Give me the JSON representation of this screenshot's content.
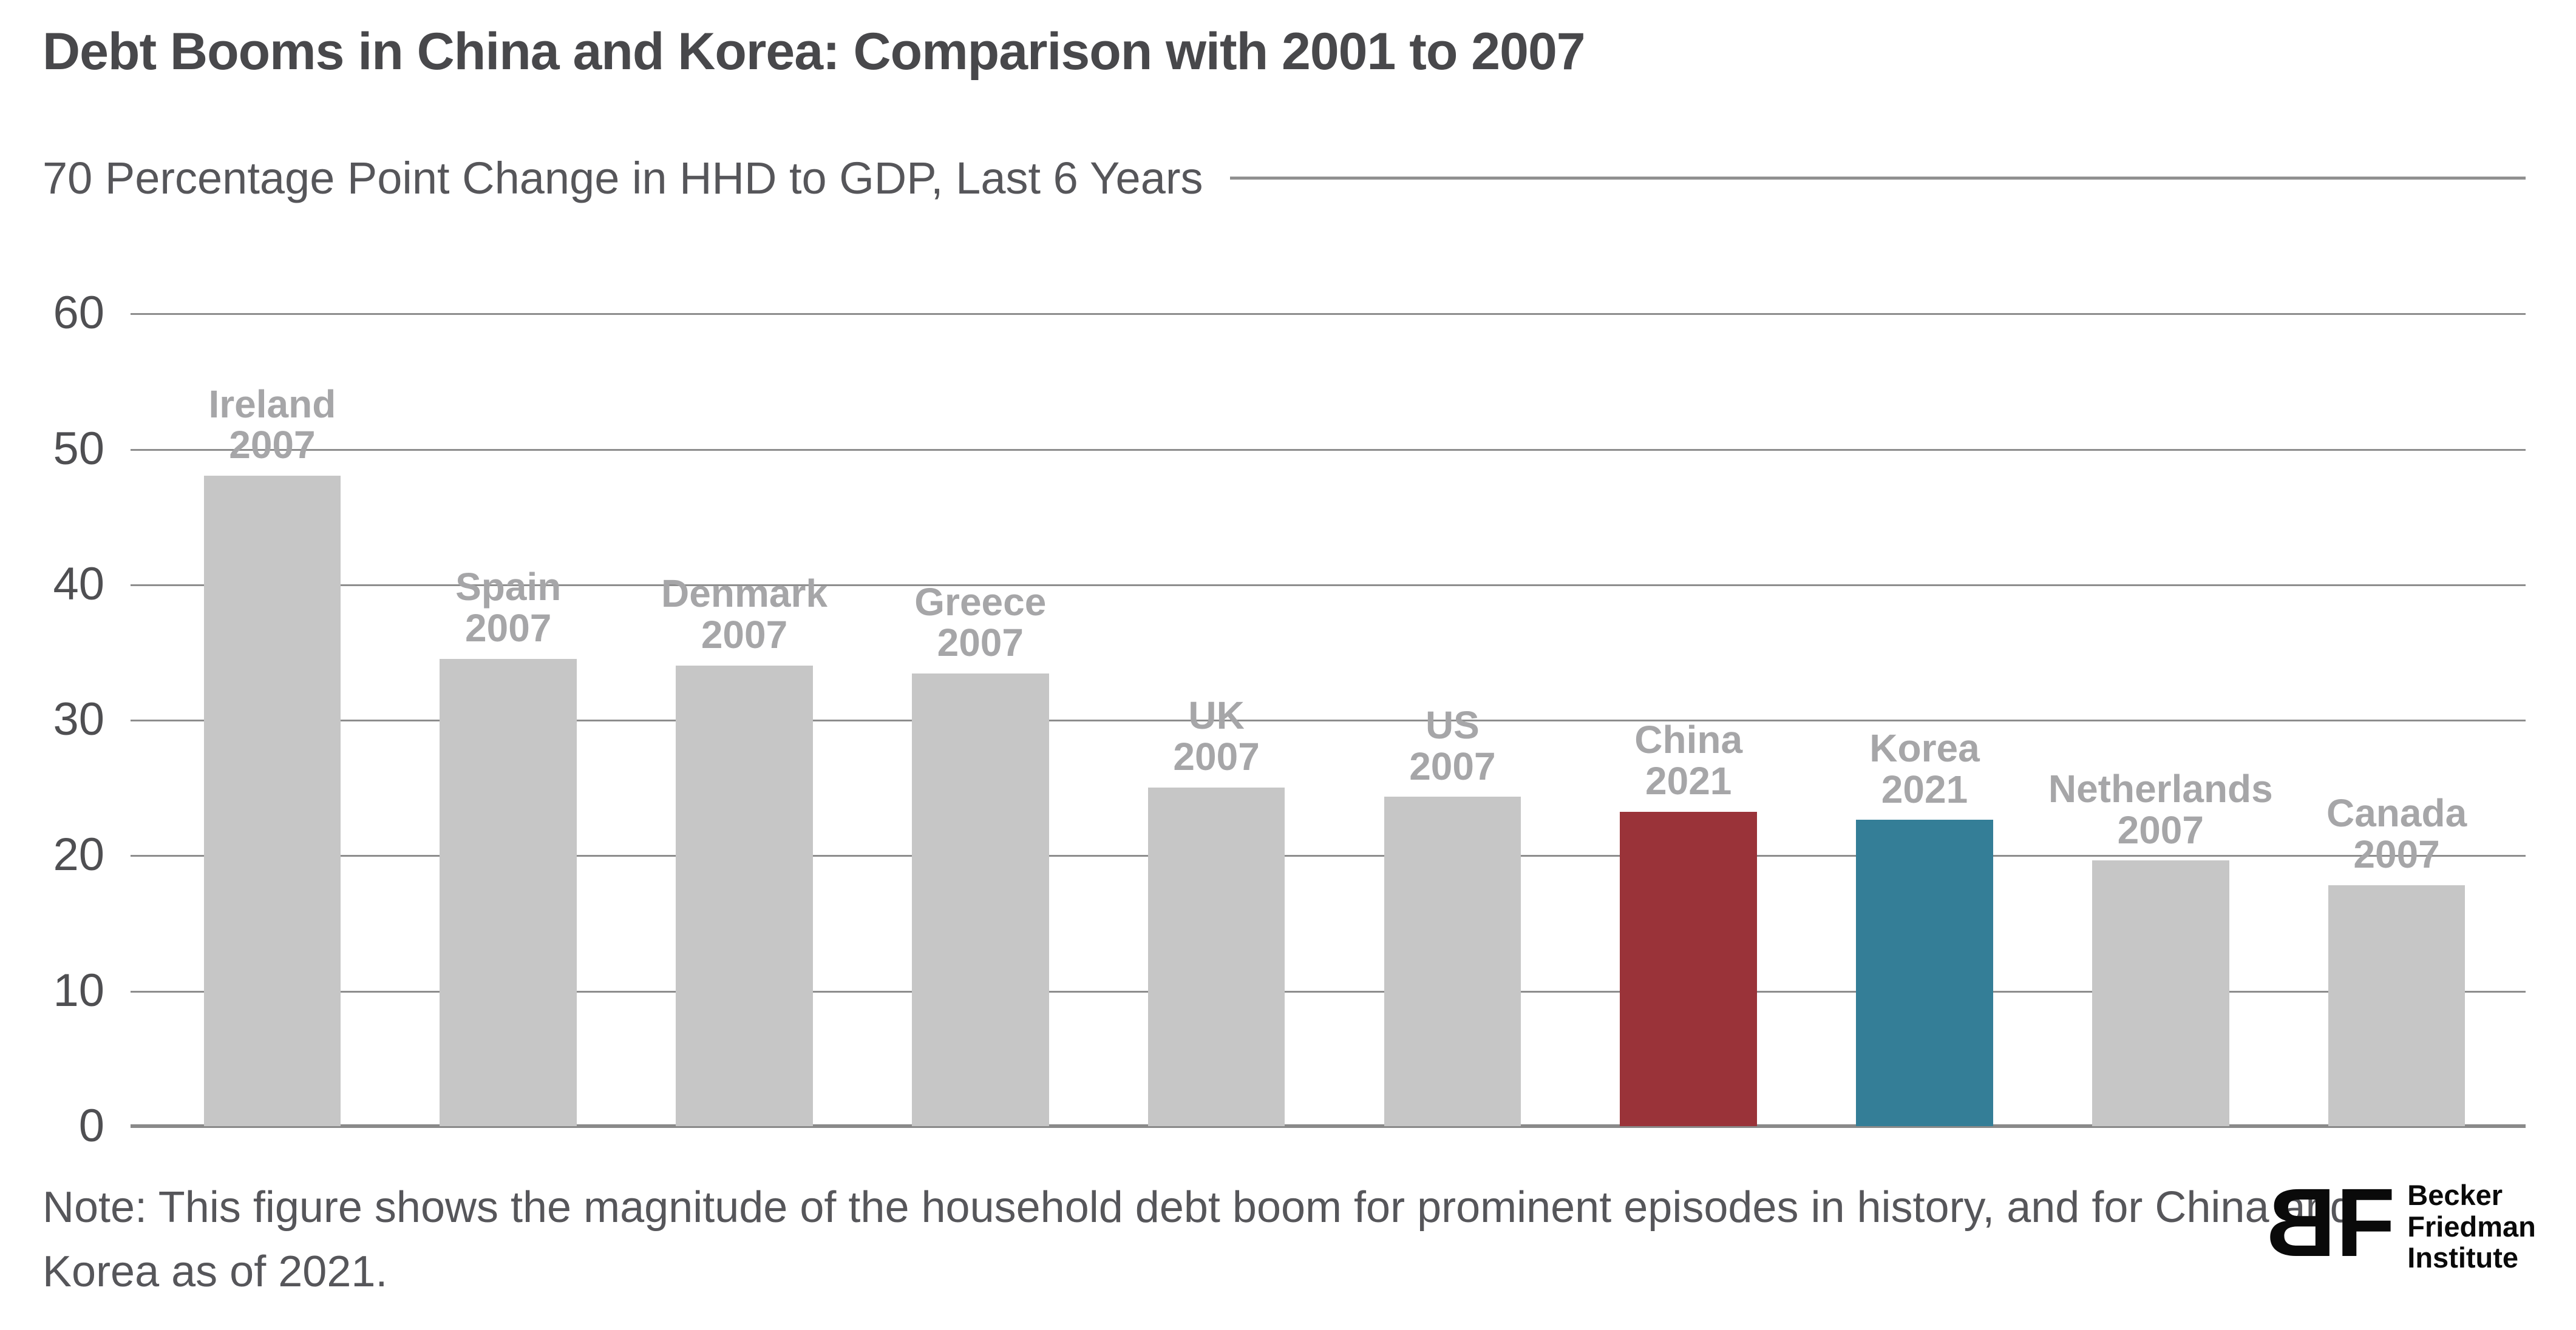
{
  "title": "Debt Booms in China and Korea: Comparison with 2001 to 2007",
  "axis": {
    "top_label_line": "70 Percentage Point Change in HHD to GDP, Last 6 Years",
    "ticks": [
      60,
      50,
      40,
      30,
      20,
      10,
      0
    ]
  },
  "chart_data": {
    "type": "bar",
    "title": "Debt Booms in China and Korea: Comparison with 2001 to 2007",
    "ylabel": "Percentage Point Change in HHD to GDP, Last 6 Years",
    "ylim": [
      0,
      70
    ],
    "yticks": [
      0,
      10,
      20,
      30,
      40,
      50,
      60,
      70
    ],
    "grid": true,
    "legend": false,
    "categories": [
      "Ireland",
      "Spain",
      "Denmark",
      "Greece",
      "UK",
      "US",
      "China",
      "Korea",
      "Netherlands",
      "Canada"
    ],
    "years": [
      "2007",
      "2007",
      "2007",
      "2007",
      "2007",
      "2007",
      "2021",
      "2021",
      "2007",
      "2007"
    ],
    "values": [
      48.0,
      34.5,
      34.0,
      33.4,
      25.0,
      24.3,
      23.2,
      22.6,
      19.6,
      17.8
    ],
    "bar_colors": [
      "#c6c6c6",
      "#c6c6c6",
      "#c6c6c6",
      "#c6c6c6",
      "#c6c6c6",
      "#c6c6c6",
      "#9a3339",
      "#347e97",
      "#c6c6c6",
      "#c6c6c6"
    ]
  },
  "colors": {
    "highlight_china": "#9a3339",
    "highlight_korea": "#347e97",
    "bar_default": "#c6c6c6",
    "gridline": "#8d8d8d",
    "bar_label": "#a6a6a8",
    "title_text": "#48484b",
    "body_text": "#56565a",
    "logo_black": "#0a0a0a"
  },
  "note": {
    "lines": [
      "Note: This figure shows the magnitude of the household debt boom for prominent episodes in history, and for China and",
      "Korea as of 2021."
    ]
  },
  "logo": {
    "mark_b": "B",
    "mark_f": "F",
    "lines": [
      "Becker",
      "Friedman",
      "Institute"
    ]
  }
}
